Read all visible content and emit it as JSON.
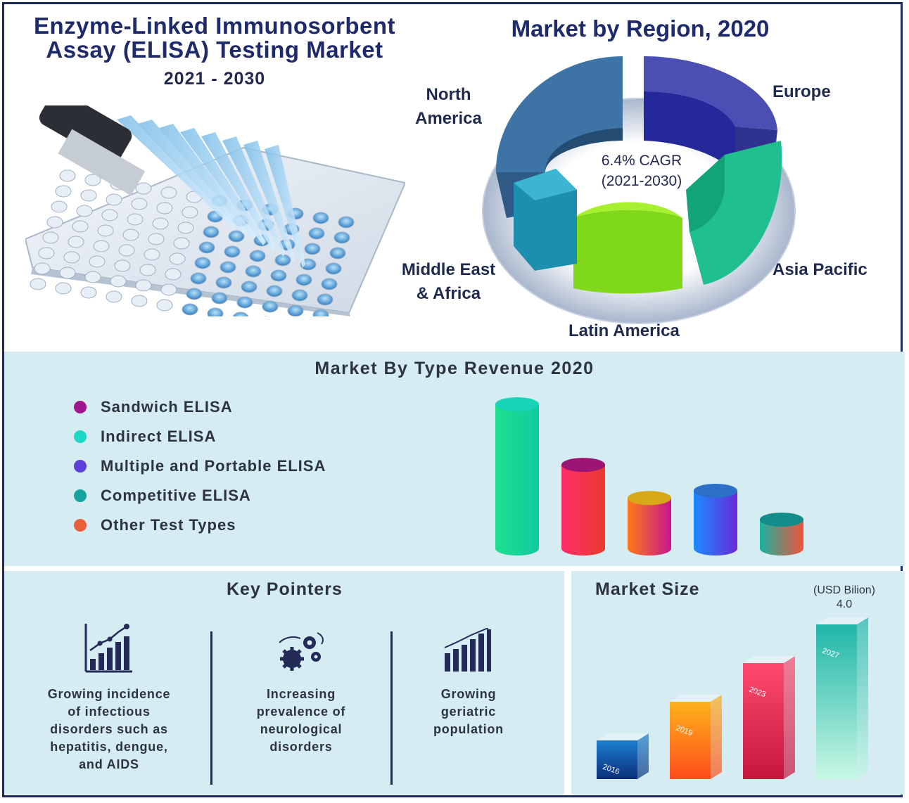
{
  "header": {
    "title_line1": "Enzyme-Linked Immunosorbent",
    "title_line2": "Assay (ELISA) Testing Market",
    "years": "2021 - 2030"
  },
  "region": {
    "title": "Market by Region, 2020",
    "cagr_line1": "6.4% CAGR",
    "cagr_line2": "(2021-2030)",
    "labels": {
      "north_america_1": "North",
      "north_america_2": "America",
      "europe": "Europe",
      "asia_pacific": "Asia Pacific",
      "latin_america": "Latin America",
      "mea_1": "Middle East",
      "mea_2": "& Africa"
    }
  },
  "type_section": {
    "title": "Market By Type Revenue 2020",
    "legend": [
      {
        "label": "Sandwich ELISA",
        "color": "#a0168c"
      },
      {
        "label": "Indirect ELISA",
        "color": "#1dd6c4"
      },
      {
        "label": "Multiple and Portable ELISA",
        "color": "#5b3fd6"
      },
      {
        "label": "Competitive ELISA",
        "color": "#17a39e"
      },
      {
        "label": "Other Test Types",
        "color": "#e8613c"
      }
    ]
  },
  "key_pointers": {
    "title": "Key Pointers",
    "items": [
      {
        "line1": "Growing incidence",
        "line2": "of infectious",
        "line3": "disorders such as",
        "line4": "hepatitis, dengue,",
        "line5": "and AIDS"
      },
      {
        "line1": "Increasing",
        "line2": "prevalence of",
        "line3": "neurological",
        "line4": "disorders"
      },
      {
        "line1": "Growing",
        "line2": "geriatric",
        "line3": "population"
      }
    ]
  },
  "market_size": {
    "title": "Market Size",
    "unit": "(USD Bilion)",
    "value_2027": "4.0"
  },
  "chart_data": [
    {
      "type": "pie",
      "title": "Market by Region, 2020",
      "categories": [
        "North America",
        "Europe",
        "Asia Pacific",
        "Latin America",
        "Middle East & Africa"
      ],
      "annotation": "6.4% CAGR (2021-2030)",
      "colors": [
        "#3d6f9e",
        "#2b2f9e",
        "#1fc28e",
        "#7fdc10",
        "#1f8fae"
      ]
    },
    {
      "type": "bar",
      "title": "Market By Type Revenue 2020",
      "categories": [
        "Sandwich ELISA",
        "Indirect ELISA",
        "Multiple and Portable ELISA",
        "Competitive ELISA",
        "Other Test Types"
      ],
      "values": [
        100,
        58,
        35,
        40,
        20
      ]
    },
    {
      "type": "bar",
      "title": "Market Size",
      "ylabel": "(USD Bilion)",
      "categories": [
        "2016",
        "2019",
        "2023",
        "2027"
      ],
      "values": [
        1.0,
        2.0,
        3.0,
        4.0
      ],
      "data_labels": {
        "2027": "4.0"
      }
    }
  ]
}
